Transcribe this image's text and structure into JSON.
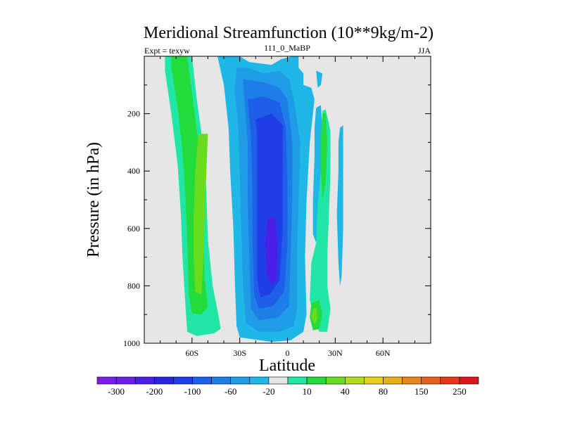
{
  "chart_data": {
    "type": "contour",
    "title": "Meridional Streamfunction (10**9kg/m-2)",
    "left_string": "Expt = texyw",
    "center_string": "111_0_MaBP",
    "right_string": "JJA",
    "xlabel": "Latitude",
    "ylabel": "Pressure (in hPa)",
    "xlim": [
      -90,
      90
    ],
    "ylim": [
      1000,
      0
    ],
    "x_ticks": [
      {
        "value": -60,
        "label": "60S"
      },
      {
        "value": -30,
        "label": "30S"
      },
      {
        "value": 0,
        "label": "0"
      },
      {
        "value": 30,
        "label": "30N"
      },
      {
        "value": 60,
        "label": "60N"
      }
    ],
    "y_ticks": [
      {
        "value": 200,
        "label": "200"
      },
      {
        "value": 400,
        "label": "400"
      },
      {
        "value": 600,
        "label": "600"
      },
      {
        "value": 800,
        "label": "800"
      },
      {
        "value": 1000,
        "label": "1000"
      }
    ],
    "background_color": "#e6e6e6",
    "colorbar": {
      "colors": [
        "#7a1ee6",
        "#6a1ee8",
        "#4a1ee6",
        "#2a22e0",
        "#1f3ee8",
        "#1e5ee8",
        "#1e7ee8",
        "#1f9ce6",
        "#1fb8e6",
        "#e6e6e6",
        "#22e6a8",
        "#22dc3c",
        "#6adc1e",
        "#b4dc1e",
        "#e6d21e",
        "#e6b01e",
        "#e6881e",
        "#e6601e",
        "#e6341e",
        "#dc141e"
      ],
      "labels": [
        {
          "after_index": 0,
          "text": "-300"
        },
        {
          "after_index": 2,
          "text": "-200"
        },
        {
          "after_index": 4,
          "text": "-100"
        },
        {
          "after_index": 6,
          "text": "-60"
        },
        {
          "after_index": 8,
          "text": "-20"
        },
        {
          "after_index": 10,
          "text": "10"
        },
        {
          "after_index": 12,
          "text": "40"
        },
        {
          "after_index": 14,
          "text": "80"
        },
        {
          "after_index": 16,
          "text": "150"
        },
        {
          "after_index": 18,
          "text": "250"
        }
      ]
    },
    "regions": [
      {
        "name": "sh-positive-10",
        "color": "#22e6a8",
        "points": [
          [
            -77,
            0
          ],
          [
            -60,
            0
          ],
          [
            -57,
            150
          ],
          [
            -53,
            310
          ],
          [
            -51,
            470
          ],
          [
            -50,
            640
          ],
          [
            -47,
            800
          ],
          [
            -43,
            915
          ],
          [
            -42,
            950
          ],
          [
            -46,
            965
          ],
          [
            -57,
            975
          ],
          [
            -63,
            960
          ],
          [
            -64,
            880
          ],
          [
            -66,
            700
          ],
          [
            -67,
            550
          ],
          [
            -69,
            380
          ],
          [
            -73,
            200
          ],
          [
            -77,
            50
          ]
        ]
      },
      {
        "name": "sh-positive-40",
        "color": "#22dc3c",
        "points": [
          [
            -73,
            0
          ],
          [
            -63,
            0
          ],
          [
            -60,
            130
          ],
          [
            -56,
            300
          ],
          [
            -54,
            460
          ],
          [
            -53,
            620
          ],
          [
            -52,
            780
          ],
          [
            -50,
            870
          ],
          [
            -54,
            900
          ],
          [
            -60,
            895
          ],
          [
            -62,
            830
          ],
          [
            -63,
            650
          ],
          [
            -64,
            500
          ],
          [
            -66,
            330
          ],
          [
            -69,
            180
          ],
          [
            -73,
            40
          ]
        ]
      },
      {
        "name": "sh-positive-80",
        "color": "#6adc1e",
        "points": [
          [
            -50,
            270
          ],
          [
            -56,
            270
          ],
          [
            -58,
            400
          ],
          [
            -59,
            560
          ],
          [
            -59,
            700
          ],
          [
            -58,
            820
          ],
          [
            -54,
            830
          ],
          [
            -53,
            720
          ],
          [
            -52,
            560
          ],
          [
            -51,
            400
          ]
        ]
      },
      {
        "name": "sh-negative-10",
        "color": "#1fb8e6",
        "points": [
          [
            -44,
            0
          ],
          [
            -30,
            0
          ],
          [
            -24,
            20
          ],
          [
            -10,
            30
          ],
          [
            -4,
            10
          ],
          [
            3,
            0
          ],
          [
            7,
            0
          ],
          [
            7,
            40
          ],
          [
            10,
            60
          ],
          [
            10,
            100
          ],
          [
            15,
            110
          ],
          [
            17,
            150
          ],
          [
            14,
            300
          ],
          [
            12,
            500
          ],
          [
            11,
            700
          ],
          [
            12,
            900
          ],
          [
            10,
            960
          ],
          [
            2,
            990
          ],
          [
            -10,
            995
          ],
          [
            -30,
            980
          ],
          [
            -32,
            940
          ],
          [
            -33,
            800
          ],
          [
            -34,
            600
          ],
          [
            -36,
            400
          ],
          [
            -37,
            250
          ],
          [
            -40,
            100
          ]
        ]
      },
      {
        "name": "sh-negative-20",
        "color": "#1f9ce6",
        "points": [
          [
            -32,
            40
          ],
          [
            -25,
            40
          ],
          [
            -15,
            60
          ],
          [
            -5,
            50
          ],
          [
            1,
            80
          ],
          [
            4,
            150
          ],
          [
            8,
            300
          ],
          [
            7,
            500
          ],
          [
            6,
            700
          ],
          [
            6,
            880
          ],
          [
            4,
            940
          ],
          [
            -5,
            960
          ],
          [
            -18,
            960
          ],
          [
            -26,
            930
          ],
          [
            -28,
            800
          ],
          [
            -29,
            600
          ],
          [
            -30,
            400
          ],
          [
            -31,
            250
          ],
          [
            -33,
            120
          ]
        ]
      },
      {
        "name": "sh-negative-40",
        "color": "#1e7ee8",
        "points": [
          [
            -28,
            80
          ],
          [
            -15,
            90
          ],
          [
            -5,
            110
          ],
          [
            0,
            150
          ],
          [
            3,
            300
          ],
          [
            3,
            500
          ],
          [
            2,
            700
          ],
          [
            1,
            870
          ],
          [
            -6,
            910
          ],
          [
            -18,
            920
          ],
          [
            -23,
            880
          ],
          [
            -24,
            700
          ],
          [
            -25,
            500
          ],
          [
            -25,
            300
          ],
          [
            -27,
            160
          ]
        ]
      },
      {
        "name": "sh-negative-60",
        "color": "#1e5ee8",
        "points": [
          [
            -25,
            150
          ],
          [
            -15,
            140
          ],
          [
            -5,
            160
          ],
          [
            -1,
            250
          ],
          [
            0,
            450
          ],
          [
            0,
            650
          ],
          [
            -2,
            820
          ],
          [
            -9,
            870
          ],
          [
            -18,
            880
          ],
          [
            -21,
            830
          ],
          [
            -22,
            650
          ],
          [
            -22,
            450
          ],
          [
            -23,
            280
          ]
        ]
      },
      {
        "name": "sh-negative-100",
        "color": "#1f3ee8",
        "points": [
          [
            -20,
            220
          ],
          [
            -10,
            200
          ],
          [
            -3,
            240
          ],
          [
            -3,
            400
          ],
          [
            -3,
            600
          ],
          [
            -5,
            780
          ],
          [
            -11,
            830
          ],
          [
            -17,
            840
          ],
          [
            -19,
            780
          ],
          [
            -19,
            600
          ],
          [
            -19,
            400
          ],
          [
            -19,
            280
          ]
        ]
      },
      {
        "name": "sh-negative-200",
        "color": "#4a1ee6",
        "points": [
          [
            -12,
            560
          ],
          [
            -8,
            560
          ],
          [
            -6,
            650
          ],
          [
            -7,
            780
          ],
          [
            -10,
            800
          ],
          [
            -13,
            760
          ],
          [
            -14,
            650
          ]
        ]
      },
      {
        "name": "nh-negative-tongue",
        "color": "#1fb8e6",
        "points": [
          [
            18,
            180
          ],
          [
            21,
            170
          ],
          [
            22,
            250
          ],
          [
            21,
            400
          ],
          [
            19,
            550
          ],
          [
            18,
            650
          ],
          [
            16,
            620
          ],
          [
            16,
            500
          ],
          [
            17,
            350
          ],
          [
            17,
            250
          ]
        ]
      },
      {
        "name": "nh-negative-cell",
        "color": "#1fb8e6",
        "points": [
          [
            33,
            250
          ],
          [
            35,
            240
          ],
          [
            35,
            400
          ],
          [
            35,
            600
          ],
          [
            34,
            770
          ],
          [
            33,
            800
          ],
          [
            32,
            720
          ],
          [
            31,
            550
          ],
          [
            32,
            400
          ],
          [
            32,
            300
          ]
        ]
      },
      {
        "name": "nh-negative-top",
        "color": "#1fb8e6",
        "points": [
          [
            18,
            50
          ],
          [
            22,
            60
          ],
          [
            21,
            100
          ],
          [
            19,
            110
          ]
        ]
      },
      {
        "name": "nh-positive-10",
        "color": "#22e6a8",
        "points": [
          [
            22,
            190
          ],
          [
            24,
            185
          ],
          [
            27,
            260
          ],
          [
            27,
            400
          ],
          [
            26,
            560
          ],
          [
            25,
            700
          ],
          [
            25,
            800
          ],
          [
            27,
            880
          ],
          [
            25,
            960
          ],
          [
            20,
            960
          ],
          [
            17,
            920
          ],
          [
            14,
            850
          ],
          [
            15,
            720
          ],
          [
            18,
            650
          ],
          [
            19,
            520
          ],
          [
            21,
            400
          ],
          [
            22,
            280
          ]
        ]
      },
      {
        "name": "nh-positive-40",
        "color": "#22dc3c",
        "points": [
          [
            22,
            200
          ],
          [
            24,
            195
          ],
          [
            25,
            300
          ],
          [
            24,
            440
          ],
          [
            22,
            500
          ],
          [
            21,
            400
          ],
          [
            21,
            280
          ]
        ]
      },
      {
        "name": "nh-positive-40-low",
        "color": "#22dc3c",
        "points": [
          [
            15,
            860
          ],
          [
            20,
            850
          ],
          [
            22,
            900
          ],
          [
            20,
            950
          ],
          [
            16,
            955
          ],
          [
            14,
            910
          ]
        ]
      },
      {
        "name": "nh-positive-80",
        "color": "#6adc1e",
        "points": [
          [
            16,
            880
          ],
          [
            18,
            875
          ],
          [
            19,
            910
          ],
          [
            17,
            935
          ],
          [
            15,
            910
          ]
        ]
      }
    ]
  }
}
